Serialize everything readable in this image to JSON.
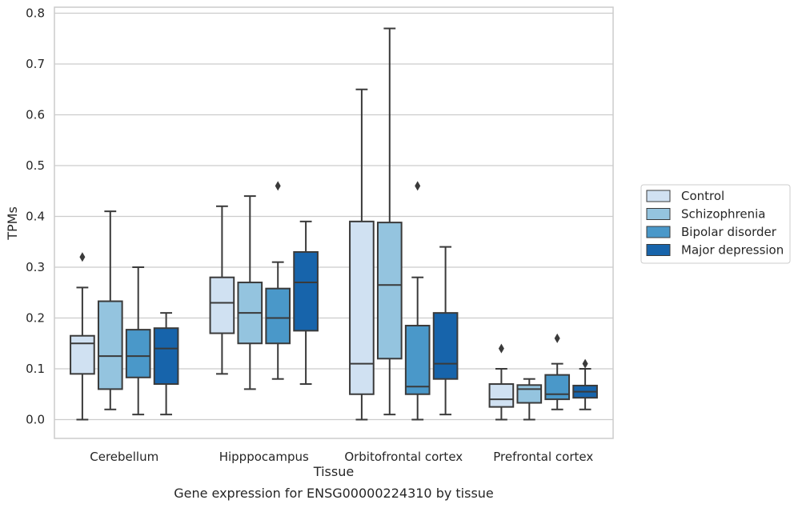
{
  "chart_data": {
    "type": "box",
    "caption": "Gene expression for ENSG00000224310 by tissue",
    "xlabel": "Tissue",
    "ylabel": "TPMs",
    "ylim": [
      -0.04,
      0.81
    ],
    "yticks": [
      0.0,
      0.1,
      0.2,
      0.3,
      0.4,
      0.5,
      0.6,
      0.7,
      0.8
    ],
    "ytick_labels": [
      "0.0",
      "0.1",
      "0.2",
      "0.3",
      "0.4",
      "0.5",
      "0.6",
      "0.7",
      "0.8"
    ],
    "grid": "horizontal",
    "legend_position": "right",
    "categories": [
      "Cerebellum",
      "Hipppocampus",
      "Orbitofrontal cortex",
      "Prefrontal cortex"
    ],
    "series": [
      {
        "name": "Control",
        "color": "#d0e1f2",
        "boxes": [
          {
            "whislo": 0.0,
            "q1": 0.09,
            "med": 0.15,
            "q3": 0.165,
            "whishi": 0.26,
            "fliers": [
              0.32
            ]
          },
          {
            "whislo": 0.09,
            "q1": 0.17,
            "med": 0.23,
            "q3": 0.28,
            "whishi": 0.42,
            "fliers": []
          },
          {
            "whislo": 0.0,
            "q1": 0.05,
            "med": 0.11,
            "q3": 0.39,
            "whishi": 0.65,
            "fliers": []
          },
          {
            "whislo": 0.0,
            "q1": 0.025,
            "med": 0.04,
            "q3": 0.07,
            "whishi": 0.1,
            "fliers": [
              0.14
            ]
          }
        ]
      },
      {
        "name": "Schizophrenia",
        "color": "#94c4df",
        "boxes": [
          {
            "whislo": 0.02,
            "q1": 0.06,
            "med": 0.125,
            "q3": 0.233,
            "whishi": 0.41,
            "fliers": []
          },
          {
            "whislo": 0.06,
            "q1": 0.15,
            "med": 0.21,
            "q3": 0.27,
            "whishi": 0.44,
            "fliers": []
          },
          {
            "whislo": 0.01,
            "q1": 0.12,
            "med": 0.265,
            "q3": 0.388,
            "whishi": 0.77,
            "fliers": []
          },
          {
            "whislo": 0.0,
            "q1": 0.033,
            "med": 0.06,
            "q3": 0.068,
            "whishi": 0.08,
            "fliers": []
          }
        ]
      },
      {
        "name": "Bipolar disorder",
        "color": "#4a98c9",
        "boxes": [
          {
            "whislo": 0.01,
            "q1": 0.083,
            "med": 0.125,
            "q3": 0.177,
            "whishi": 0.3,
            "fliers": []
          },
          {
            "whislo": 0.08,
            "q1": 0.15,
            "med": 0.2,
            "q3": 0.258,
            "whishi": 0.31,
            "fliers": [
              0.46
            ]
          },
          {
            "whislo": 0.0,
            "q1": 0.05,
            "med": 0.065,
            "q3": 0.185,
            "whishi": 0.28,
            "fliers": [
              0.46
            ]
          },
          {
            "whislo": 0.02,
            "q1": 0.04,
            "med": 0.05,
            "q3": 0.088,
            "whishi": 0.11,
            "fliers": [
              0.16
            ]
          }
        ]
      },
      {
        "name": "Major depression",
        "color": "#1764ab",
        "boxes": [
          {
            "whislo": 0.01,
            "q1": 0.07,
            "med": 0.14,
            "q3": 0.18,
            "whishi": 0.21,
            "fliers": []
          },
          {
            "whislo": 0.07,
            "q1": 0.175,
            "med": 0.27,
            "q3": 0.33,
            "whishi": 0.39,
            "fliers": []
          },
          {
            "whislo": 0.01,
            "q1": 0.08,
            "med": 0.11,
            "q3": 0.21,
            "whishi": 0.34,
            "fliers": []
          },
          {
            "whislo": 0.02,
            "q1": 0.043,
            "med": 0.055,
            "q3": 0.067,
            "whishi": 0.1,
            "fliers": [
              0.11
            ]
          }
        ]
      }
    ]
  }
}
